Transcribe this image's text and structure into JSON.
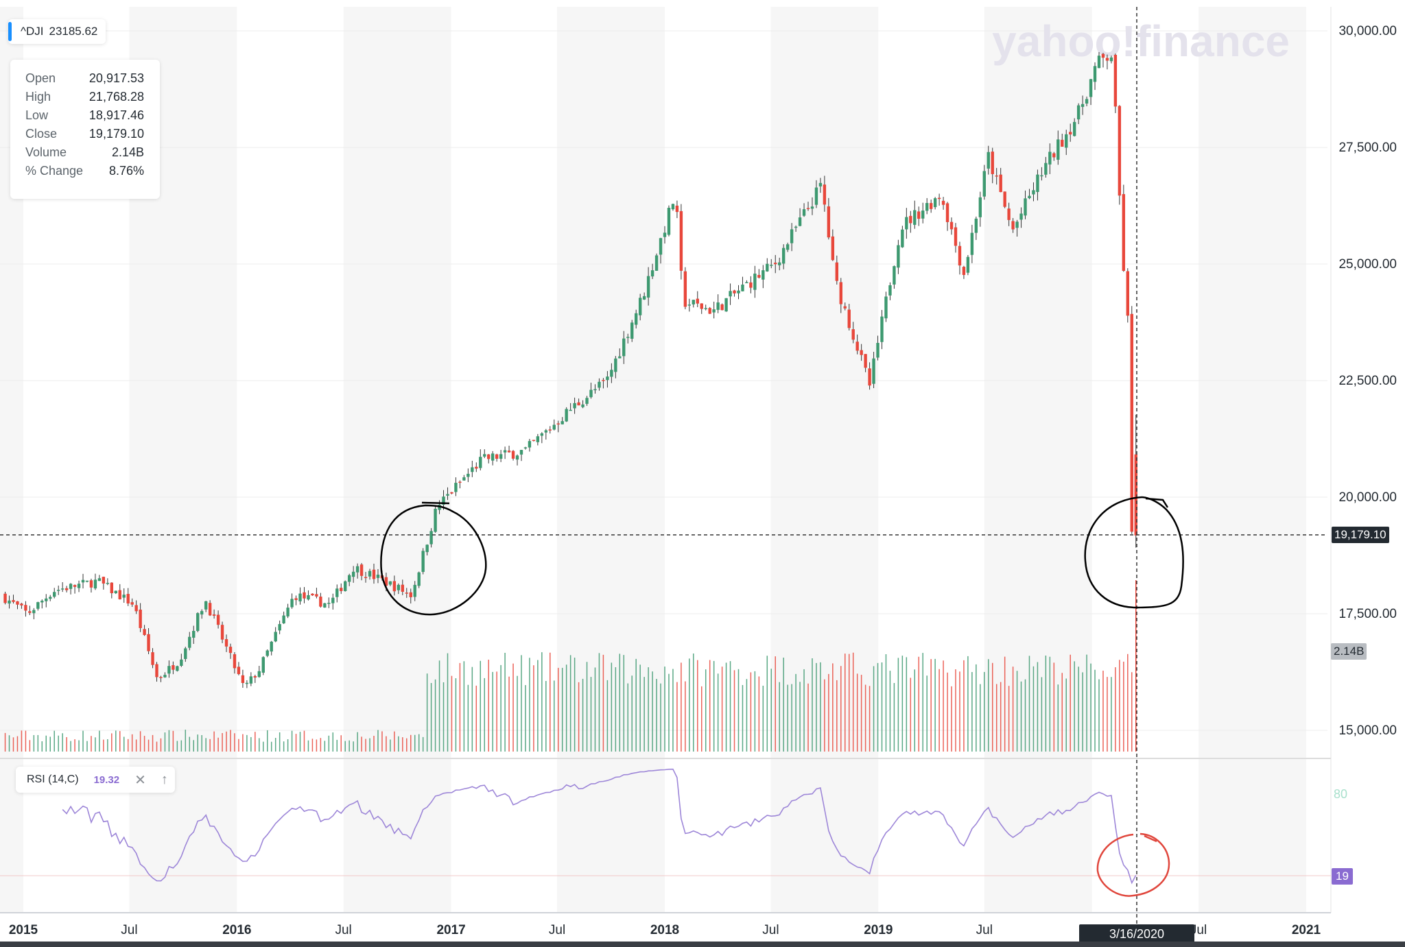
{
  "ticker": {
    "symbol": "^DJI",
    "price": "23185.62"
  },
  "ohlc": [
    {
      "label": "Open",
      "value": "20,917.53"
    },
    {
      "label": "High",
      "value": "21,768.28"
    },
    {
      "label": "Low",
      "value": "18,917.46"
    },
    {
      "label": "Close",
      "value": "19,179.10"
    },
    {
      "label": "Volume",
      "value": "2.14B"
    },
    {
      "label": "% Change",
      "value": "8.76%"
    }
  ],
  "watermark": "yahoo!finance",
  "price_tag": "19,179.10",
  "volume_tag": "2.14B",
  "rsi": {
    "label": "RSI (14,C)",
    "value": "19.32",
    "level_tag": "19",
    "upper_level_label": "80"
  },
  "crosshair_date": "3/16/2020",
  "colors": {
    "up": "#3d9970",
    "down": "#e8473b",
    "rsi_line": "#9d86d8",
    "rsi_fill": "#c8ece0",
    "annotation_black": "#000000",
    "annotation_red": "#e0463c"
  },
  "chart_data": {
    "type": "candlestick",
    "interval": "weekly",
    "price_axis": {
      "ylim": [
        14500,
        30500
      ],
      "ticks": [
        "30,000.00",
        "27,500.00",
        "25,000.00",
        "22,500.00",
        "20,000.00",
        "17,500.00",
        "15,000.00"
      ]
    },
    "x_axis": {
      "ticks": [
        "2015",
        "Jul",
        "2016",
        "Jul",
        "2017",
        "Jul",
        "2018",
        "Jul",
        "2019",
        "Jul",
        "2020",
        "Jul",
        "2021"
      ]
    },
    "series": [
      {
        "name": "^DJI",
        "anchors": [
          [
            "2014-12-01",
            17900
          ],
          [
            "2015-01-15",
            17500
          ],
          [
            "2015-03-01",
            18000
          ],
          [
            "2015-05-15",
            18200
          ],
          [
            "2015-07-15",
            17700
          ],
          [
            "2015-08-25",
            16100
          ],
          [
            "2015-10-01",
            16500
          ],
          [
            "2015-11-15",
            17800
          ],
          [
            "2016-01-20",
            15900
          ],
          [
            "2016-02-15",
            16300
          ],
          [
            "2016-04-15",
            17900
          ],
          [
            "2016-06-15",
            17700
          ],
          [
            "2016-07-25",
            18500
          ],
          [
            "2016-09-15",
            18200
          ],
          [
            "2016-11-01",
            17900
          ],
          [
            "2016-12-15",
            19800
          ],
          [
            "2017-03-01",
            20800
          ],
          [
            "2017-05-15",
            21000
          ],
          [
            "2017-08-01",
            21900
          ],
          [
            "2017-10-01",
            22500
          ],
          [
            "2017-12-01",
            24300
          ],
          [
            "2018-01-26",
            26500
          ],
          [
            "2018-02-08",
            24200
          ],
          [
            "2018-04-01",
            24000
          ],
          [
            "2018-06-01",
            24600
          ],
          [
            "2018-07-15",
            25000
          ],
          [
            "2018-10-03",
            26700
          ],
          [
            "2018-10-25",
            24700
          ],
          [
            "2018-12-24",
            22400
          ],
          [
            "2019-02-15",
            25800
          ],
          [
            "2019-04-25",
            26500
          ],
          [
            "2019-06-03",
            24800
          ],
          [
            "2019-07-15",
            27300
          ],
          [
            "2019-08-25",
            25700
          ],
          [
            "2019-10-15",
            27000
          ],
          [
            "2019-12-15",
            28200
          ],
          [
            "2020-01-17",
            29300
          ],
          [
            "2020-02-12",
            29500
          ],
          [
            "2020-02-28",
            25400
          ],
          [
            "2020-03-09",
            23800
          ],
          [
            "2020-03-16",
            19179
          ]
        ]
      }
    ],
    "last_candle": {
      "date": "3/16/2020",
      "open": 20917.53,
      "high": 21768.28,
      "low": 18917.46,
      "close": 19179.1,
      "volume": "2.14B",
      "pct_change": "8.76%"
    },
    "indicator": {
      "name": "RSI (14,C)",
      "last": 19.32,
      "levels": [
        80
      ],
      "fill_above": 80
    }
  }
}
